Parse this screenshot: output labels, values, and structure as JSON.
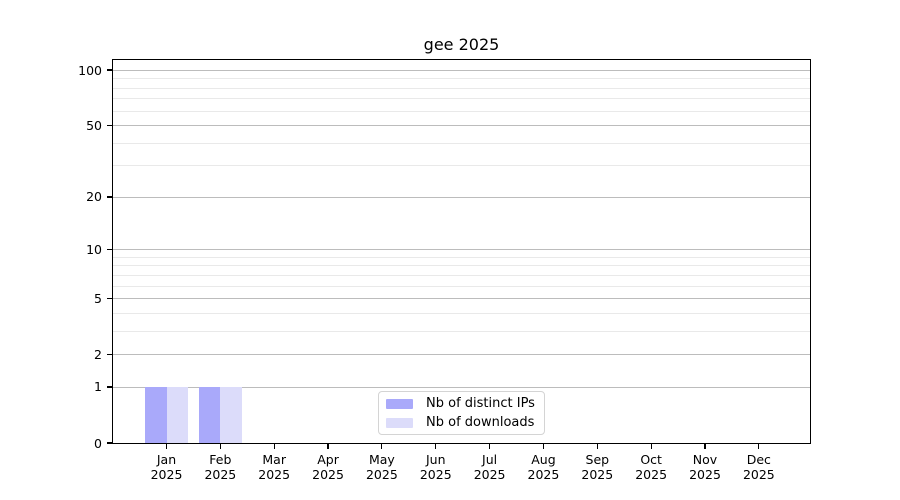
{
  "chart_data": {
    "type": "bar",
    "title": "gee 2025",
    "categories": [
      "Jan",
      "Feb",
      "Mar",
      "Apr",
      "May",
      "Jun",
      "Jul",
      "Aug",
      "Sep",
      "Oct",
      "Nov",
      "Dec"
    ],
    "tick_year": "2025",
    "series": [
      {
        "name": "Nb of distinct IPs",
        "color": "#a9a9fa",
        "values": [
          1,
          1,
          0,
          0,
          0,
          0,
          0,
          0,
          0,
          0,
          0,
          0
        ]
      },
      {
        "name": "Nb of downloads",
        "color": "#dcdcfa",
        "values": [
          1,
          1,
          0,
          0,
          0,
          0,
          0,
          0,
          0,
          0,
          0,
          0
        ]
      }
    ],
    "y_scale": "log1p",
    "y_ticks": [
      0,
      1,
      2,
      5,
      10,
      20,
      50,
      100
    ],
    "y_minor_ticks": [
      3,
      4,
      6,
      7,
      8,
      9,
      30,
      40,
      60,
      70,
      80,
      90
    ],
    "ylim": [
      0,
      113
    ],
    "xlabel": "",
    "ylabel": "",
    "grid": "horizontal major+minor",
    "legend_position": "lower center"
  },
  "colors": {
    "axis": "#000000",
    "grid_major": "#bcbcbc",
    "grid_minor": "#e9e9e9",
    "background": "#ffffff",
    "legend_border": "#d4d4d4"
  }
}
